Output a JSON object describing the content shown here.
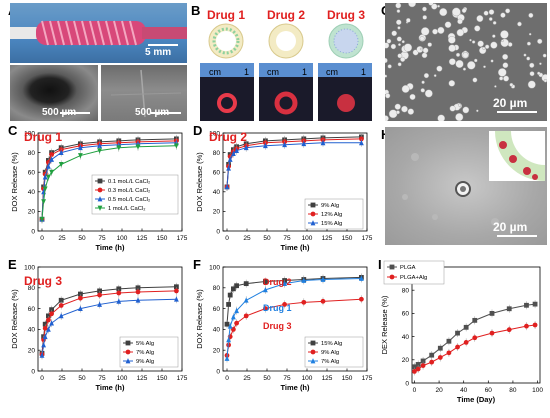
{
  "panels": {
    "A": {
      "label": "A",
      "scale_main": "5 mm",
      "scale_left": "500 µm",
      "scale_right": "500 µm"
    },
    "B": {
      "label": "B",
      "drug_titles": [
        "Drug 1",
        "Drug 2",
        "Drug 3"
      ],
      "ruler_unit": "cm",
      "ruler_tick": "1"
    },
    "G": {
      "label": "G",
      "scale": "20 µm"
    },
    "H": {
      "label": "H",
      "scale": "20 µm"
    }
  },
  "chart_data": [
    {
      "id": "C",
      "type": "line",
      "panel_label": "C",
      "title": "Drug 1",
      "xlabel": "Time (h)",
      "ylabel": "DOX Release (%)",
      "xlim": [
        -5,
        175
      ],
      "ylim": [
        0,
        100
      ],
      "xticks": [
        0,
        25,
        50,
        75,
        100,
        125,
        150,
        175
      ],
      "yticks": [
        0,
        20,
        40,
        60,
        80,
        100
      ],
      "x": [
        0,
        2,
        4,
        8,
        12,
        24,
        48,
        72,
        96,
        120,
        168
      ],
      "legend": "center-right",
      "series": [
        {
          "name": "0.1 moL/L CaCl₂",
          "color": "#404040",
          "marker": "square",
          "values": [
            12,
            45,
            60,
            72,
            80,
            85,
            89,
            91,
            92,
            93,
            94
          ]
        },
        {
          "name": "0.3 moL/L CaCl₂",
          "color": "#e02020",
          "marker": "circle",
          "values": [
            12,
            43,
            58,
            70,
            78,
            83,
            87,
            89,
            90,
            91,
            92
          ]
        },
        {
          "name": "0.5 moL/L CaCl₂",
          "color": "#2060d0",
          "marker": "triangle",
          "values": [
            12,
            40,
            55,
            66,
            73,
            80,
            85,
            87,
            88,
            89,
            90
          ]
        },
        {
          "name": "1  moL/L CaCl₂",
          "color": "#20a040",
          "marker": "triangle-down",
          "values": [
            12,
            30,
            43,
            55,
            60,
            68,
            77,
            82,
            85,
            86,
            87
          ]
        }
      ]
    },
    {
      "id": "D",
      "type": "line",
      "panel_label": "D",
      "title": "Drug 2",
      "xlabel": "Time (h)",
      "ylabel": "DOX Release (%)",
      "xlim": [
        -5,
        175
      ],
      "ylim": [
        0,
        100
      ],
      "xticks": [
        0,
        25,
        50,
        75,
        100,
        125,
        150,
        175
      ],
      "yticks": [
        0,
        20,
        40,
        60,
        80,
        100
      ],
      "x": [
        0,
        2,
        4,
        8,
        12,
        24,
        48,
        72,
        96,
        120,
        168
      ],
      "legend": "bottom-right",
      "series": [
        {
          "name": "9%  Alg",
          "color": "#404040",
          "marker": "square",
          "values": [
            45,
            68,
            78,
            83,
            86,
            89,
            92,
            93,
            94,
            95,
            96
          ]
        },
        {
          "name": "12% Alg",
          "color": "#e02020",
          "marker": "circle",
          "values": [
            45,
            66,
            76,
            81,
            84,
            87,
            90,
            91,
            92,
            93,
            94
          ]
        },
        {
          "name": "15% Alg",
          "color": "#2060d0",
          "marker": "triangle",
          "values": [
            45,
            64,
            73,
            79,
            82,
            85,
            87,
            88,
            89,
            90,
            90
          ]
        }
      ]
    },
    {
      "id": "E",
      "type": "line",
      "panel_label": "E",
      "title": "Drug 3",
      "xlabel": "Time (h)",
      "ylabel": "DOX Release (%)",
      "xlim": [
        -5,
        175
      ],
      "ylim": [
        0,
        100
      ],
      "xticks": [
        0,
        25,
        50,
        75,
        100,
        125,
        150,
        175
      ],
      "yticks": [
        0,
        20,
        40,
        60,
        80,
        100
      ],
      "x": [
        0,
        2,
        4,
        8,
        12,
        24,
        48,
        72,
        96,
        120,
        168
      ],
      "legend": "bottom-right",
      "series": [
        {
          "name": "5% Alg",
          "color": "#404040",
          "marker": "square",
          "values": [
            17,
            33,
            45,
            53,
            59,
            68,
            74,
            77,
            79,
            80,
            81
          ]
        },
        {
          "name": "7% Alg",
          "color": "#e02020",
          "marker": "circle",
          "values": [
            16,
            30,
            41,
            49,
            55,
            63,
            70,
            73,
            75,
            76,
            77
          ]
        },
        {
          "name": "9% Alg",
          "color": "#2060d0",
          "marker": "triangle",
          "values": [
            15,
            25,
            33,
            40,
            46,
            53,
            60,
            64,
            67,
            68,
            69
          ]
        }
      ]
    },
    {
      "id": "F",
      "type": "line",
      "panel_label": "F",
      "title": "",
      "xlabel": "Time (h)",
      "ylabel": "DOX Release (%)",
      "xlim": [
        -5,
        175
      ],
      "ylim": [
        0,
        100
      ],
      "xticks": [
        0,
        25,
        50,
        75,
        100,
        125,
        150,
        175
      ],
      "yticks": [
        0,
        20,
        40,
        60,
        80,
        100
      ],
      "x": [
        0,
        2,
        4,
        8,
        12,
        24,
        48,
        72,
        96,
        120,
        168
      ],
      "legend": "bottom-right",
      "annotations": [
        "Drug 2",
        "Drug 1",
        "Drug 3"
      ],
      "series": [
        {
          "name": "15% Alg",
          "color": "#404040",
          "marker": "square",
          "values": [
            45,
            64,
            73,
            79,
            82,
            84,
            86,
            87,
            88,
            89,
            90
          ]
        },
        {
          "name": "9%  Alg",
          "color": "#e02020",
          "marker": "circle",
          "values": [
            15,
            25,
            33,
            40,
            46,
            53,
            60,
            64,
            66,
            67,
            69
          ]
        },
        {
          "name": "7%  Alg",
          "color": "#2080e0",
          "marker": "triangle",
          "values": [
            12,
            30,
            43,
            52,
            58,
            68,
            78,
            84,
            87,
            88,
            89
          ]
        }
      ]
    },
    {
      "id": "I",
      "type": "line",
      "panel_label": "I",
      "title": "",
      "xlabel": "Time (Day)",
      "ylabel": "DEX Release (%)",
      "xlim": [
        -2,
        102
      ],
      "ylim": [
        0,
        100
      ],
      "xticks": [
        0,
        20,
        40,
        60,
        80,
        100
      ],
      "yticks": [
        0,
        20,
        40,
        60,
        80,
        100
      ],
      "x": [
        0,
        3,
        7,
        14,
        21,
        28,
        35,
        42,
        49,
        63,
        77,
        91,
        98
      ],
      "legend": "top-left",
      "series": [
        {
          "name": "PLGA",
          "color": "#505050",
          "marker": "square",
          "values": [
            14,
            16,
            19,
            24,
            30,
            36,
            43,
            48,
            54,
            60,
            64,
            67,
            68
          ]
        },
        {
          "name": "PLGA+Alg",
          "color": "#e02020",
          "marker": "circle",
          "values": [
            10,
            12,
            15,
            18,
            22,
            26,
            31,
            35,
            39,
            43,
            46,
            49,
            50
          ]
        }
      ]
    }
  ]
}
